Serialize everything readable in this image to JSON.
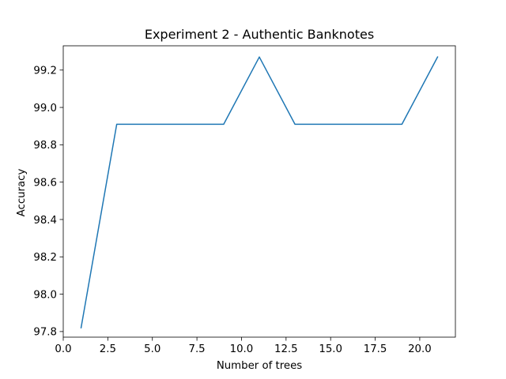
{
  "chart_data": {
    "type": "line",
    "title": "Experiment 2 - Authentic Banknotes",
    "xlabel": "Number of trees",
    "ylabel": "Accuracy",
    "xlim": [
      0,
      22
    ],
    "ylim": [
      97.77,
      99.33
    ],
    "x_ticks": [
      0.0,
      2.5,
      5.0,
      7.5,
      10.0,
      12.5,
      15.0,
      17.5,
      20.0
    ],
    "x_tick_labels": [
      "0.0",
      "2.5",
      "5.0",
      "7.5",
      "10.0",
      "12.5",
      "15.0",
      "17.5",
      "20.0"
    ],
    "y_ticks": [
      97.8,
      98.0,
      98.2,
      98.4,
      98.6,
      98.8,
      99.0,
      99.2
    ],
    "y_tick_labels": [
      "97.8",
      "98.0",
      "98.2",
      "98.4",
      "98.6",
      "98.8",
      "99.0",
      "99.2"
    ],
    "grid": false,
    "series": [
      {
        "color": "#1f77b4",
        "x": [
          1,
          3,
          5,
          7,
          9,
          11,
          13,
          15,
          17,
          19,
          21
        ],
        "y": [
          97.82,
          98.91,
          98.91,
          98.91,
          98.91,
          99.27,
          98.91,
          98.91,
          98.91,
          98.91,
          99.27
        ]
      }
    ]
  }
}
